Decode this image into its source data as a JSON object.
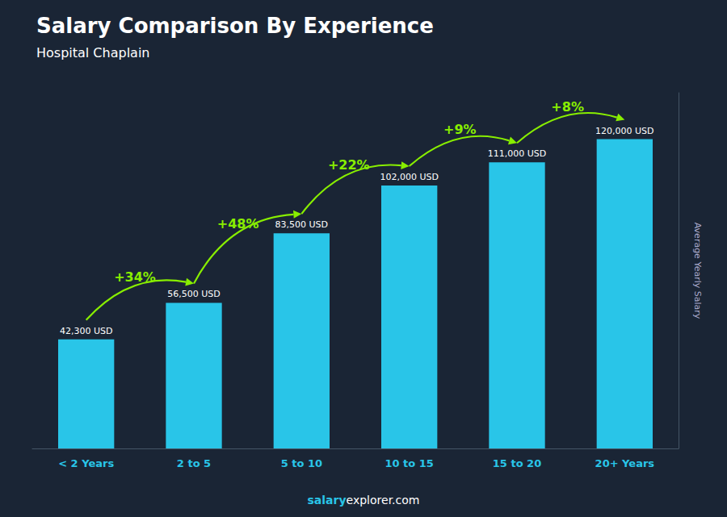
{
  "chart_data": {
    "type": "bar",
    "title": "Salary Comparison By Experience",
    "subtitle": "Hospital Chaplain",
    "categories": [
      "< 2 Years",
      "2 to 5",
      "5 to 10",
      "10 to 15",
      "15 to 20",
      "20+ Years"
    ],
    "values": [
      42300,
      56500,
      83500,
      102000,
      111000,
      120000
    ],
    "value_labels": [
      "42,300 USD",
      "56,500 USD",
      "83,500 USD",
      "102,000 USD",
      "111,000 USD",
      "120,000 USD"
    ],
    "data_labels": true,
    "annotations": [
      "+34%",
      "+48%",
      "+22%",
      "+9%",
      "+8%"
    ],
    "ylabel": "Average Yearly Salary",
    "footer": [
      "salary",
      "explorer.com"
    ],
    "color": "#29C5E8",
    "ylim": [
      0,
      138000
    ],
    "tick_labels": "x",
    "grid": false
  }
}
